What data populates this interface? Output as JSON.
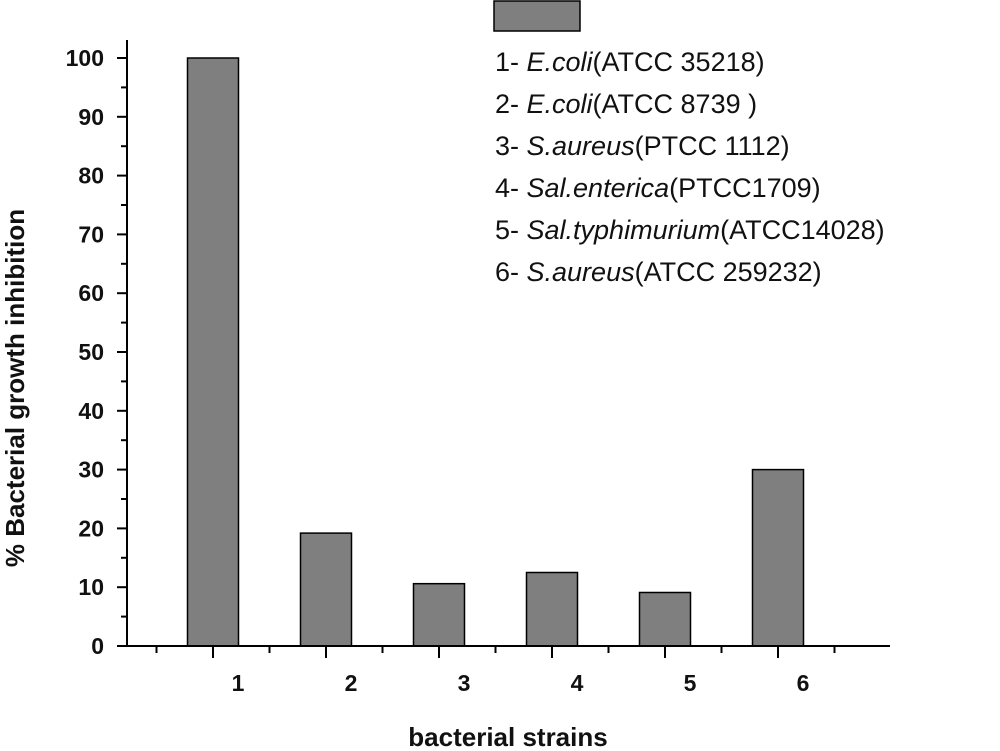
{
  "chart_data": {
    "type": "bar",
    "categories": [
      "1",
      "2",
      "3",
      "4",
      "5",
      "6"
    ],
    "values": [
      100,
      19.2,
      10.6,
      12.5,
      9.1,
      30
    ],
    "xlabel": "bacterial strains",
    "ylabel": "% Bacterial growth inhibition",
    "ylim": [
      0,
      105
    ],
    "yticks": [
      "0",
      "10",
      "20",
      "30",
      "40",
      "50",
      "60",
      "70",
      "80",
      "90",
      "100"
    ],
    "bar_color": "#7f7f7f",
    "grid": false,
    "legend_position": "top-right",
    "legend_items": [
      {
        "num": "1- ",
        "italic": "E.coli",
        "rest": "(ATCC 35218)"
      },
      {
        "num": "2- ",
        "italic": "E.coli",
        "rest": "(ATCC 8739 )"
      },
      {
        "num": "3- ",
        "italic": "S.aureus",
        "rest": "(PTCC 1112)"
      },
      {
        "num": "4- ",
        "italic": "Sal.enterica",
        "rest": "(PTCC1709)"
      },
      {
        "num": "5- ",
        "italic": "Sal.typhimurium",
        "rest": "(ATCC14028)"
      },
      {
        "num": "6- ",
        "italic": "S.aureus",
        "rest": "(ATCC 259232)"
      }
    ]
  }
}
